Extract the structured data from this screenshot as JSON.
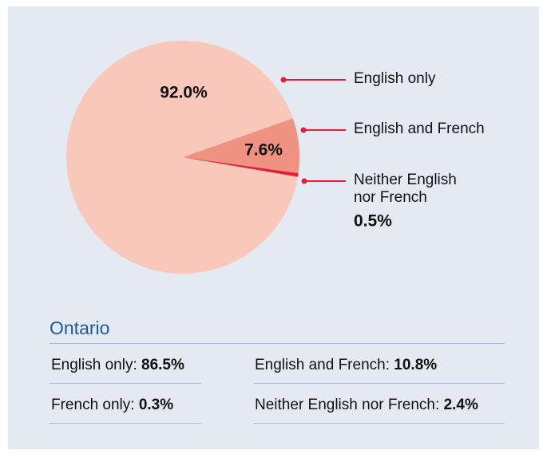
{
  "chart_data": {
    "type": "pie",
    "categories": [
      "English only",
      "English and French",
      "Neither English nor French"
    ],
    "values": [
      92.0,
      7.6,
      0.5
    ],
    "value_labels": [
      "92.0%",
      "7.6%",
      "0.5%"
    ],
    "colors": [
      "#f8c8bb",
      "#f09282",
      "#e41f3a"
    ]
  },
  "ontario": {
    "title": "Ontario",
    "items": [
      {
        "label": "English only:",
        "value": "86.5%"
      },
      {
        "label": "English and French:",
        "value": "10.8%"
      },
      {
        "label": "French only:",
        "value": "0.3%"
      },
      {
        "label": "Neither English nor French:",
        "value": "2.4%"
      }
    ]
  }
}
